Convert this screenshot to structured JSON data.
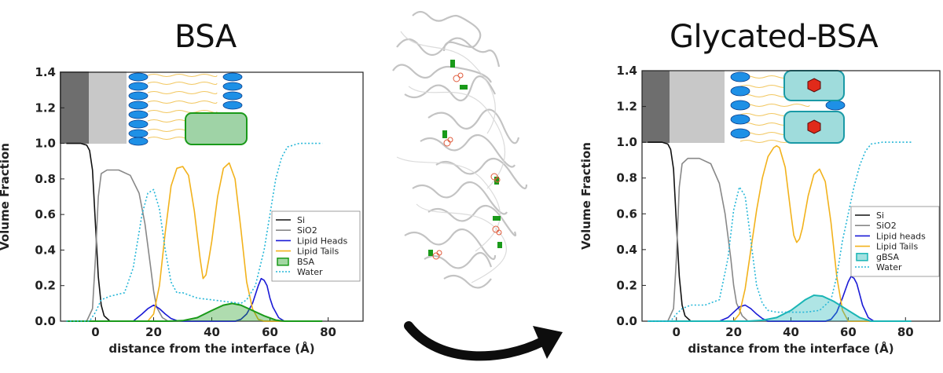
{
  "panels": {
    "left_title": "BSA",
    "right_title": "Glycated-BSA"
  },
  "chart_data": [
    {
      "type": "line",
      "title": "BSA",
      "xlabel": "distance from the interface (Å)",
      "ylabel": "Volume Fraction",
      "xlim": [
        -12,
        92
      ],
      "ylim": [
        0,
        1.4
      ],
      "xticks": [
        0,
        20,
        40,
        60,
        80
      ],
      "yticks": [
        0.0,
        0.2,
        0.4,
        0.6,
        0.8,
        1.0,
        1.2,
        1.4
      ],
      "x_tick_labels": [
        "0",
        "20",
        "40",
        "60",
        "80"
      ],
      "y_tick_labels": [
        "0.0",
        "0.2",
        "0.4",
        "0.6",
        "0.8",
        "1.0",
        "1.2",
        "1.4"
      ],
      "legend_position": "middle-right",
      "series": [
        {
          "name": "Si",
          "color": "#111111",
          "style": "solid",
          "x": [
            -10,
            -5,
            -3,
            -2,
            -1,
            0,
            1,
            2,
            3,
            5,
            8,
            78
          ],
          "y": [
            1.0,
            1.0,
            0.99,
            0.96,
            0.85,
            0.55,
            0.25,
            0.09,
            0.03,
            0.0,
            0.0,
            0.0
          ]
        },
        {
          "name": "SiO2",
          "color": "#888888",
          "style": "solid",
          "x": [
            -10,
            -3,
            -1,
            0,
            1,
            2,
            4,
            8,
            12,
            15,
            17,
            19,
            20,
            21,
            23,
            25,
            78
          ],
          "y": [
            0.0,
            0.0,
            0.07,
            0.35,
            0.7,
            0.83,
            0.85,
            0.85,
            0.82,
            0.72,
            0.55,
            0.3,
            0.17,
            0.08,
            0.02,
            0.0,
            0.0
          ]
        },
        {
          "name": "Lipid Heads",
          "color": "#1a1ad6",
          "style": "solid",
          "x": [
            -10,
            13,
            16,
            18,
            20,
            22,
            24,
            26,
            28,
            30,
            48,
            50,
            52,
            54,
            56,
            57,
            58,
            59,
            60,
            61,
            63,
            65,
            78
          ],
          "y": [
            0.0,
            0.0,
            0.04,
            0.07,
            0.09,
            0.07,
            0.04,
            0.015,
            0.003,
            0.0,
            0.0,
            0.01,
            0.04,
            0.1,
            0.2,
            0.24,
            0.23,
            0.2,
            0.13,
            0.08,
            0.02,
            0.0,
            0.0
          ]
        },
        {
          "name": "Lipid Tails",
          "color": "#f2b21c",
          "style": "solid",
          "x": [
            -10,
            18,
            20,
            22,
            24,
            26,
            28,
            30,
            32,
            34,
            36,
            37,
            38,
            39,
            40,
            42,
            44,
            46,
            48,
            50,
            52,
            54,
            56,
            58,
            78
          ],
          "y": [
            0.0,
            0.0,
            0.04,
            0.2,
            0.5,
            0.76,
            0.86,
            0.87,
            0.82,
            0.62,
            0.35,
            0.24,
            0.26,
            0.35,
            0.45,
            0.7,
            0.86,
            0.89,
            0.8,
            0.52,
            0.22,
            0.07,
            0.01,
            0.0,
            0.0
          ]
        },
        {
          "name": "BSA",
          "color": "#1a9a1a",
          "style": "area",
          "x": [
            -10,
            25,
            30,
            35,
            40,
            44,
            47,
            50,
            54,
            58,
            62,
            65,
            78
          ],
          "y": [
            0.0,
            0.0,
            0.003,
            0.02,
            0.06,
            0.09,
            0.1,
            0.09,
            0.06,
            0.03,
            0.006,
            0.0,
            0.0
          ]
        },
        {
          "name": "Water",
          "color": "#27b7d8",
          "style": "dotted",
          "x": [
            -10,
            -2,
            0,
            2,
            5,
            10,
            13,
            16,
            18,
            20,
            22,
            24,
            26,
            28,
            30,
            35,
            40,
            45,
            50,
            52,
            55,
            58,
            60,
            62,
            64,
            66,
            70,
            78
          ],
          "y": [
            0.0,
            0.0,
            0.05,
            0.12,
            0.14,
            0.16,
            0.3,
            0.6,
            0.72,
            0.74,
            0.63,
            0.4,
            0.22,
            0.16,
            0.16,
            0.13,
            0.12,
            0.11,
            0.1,
            0.12,
            0.2,
            0.4,
            0.6,
            0.8,
            0.92,
            0.98,
            1.0,
            1.0
          ]
        }
      ]
    },
    {
      "type": "line",
      "title": "Glycated-BSA",
      "xlabel": "distance from the interface (Å)",
      "ylabel": "Volume Fraction",
      "xlim": [
        -12,
        92
      ],
      "ylim": [
        0,
        1.4
      ],
      "xticks": [
        0,
        20,
        40,
        60,
        80
      ],
      "yticks": [
        0.0,
        0.2,
        0.4,
        0.6,
        0.8,
        1.0,
        1.2,
        1.4
      ],
      "x_tick_labels": [
        "0",
        "20",
        "40",
        "60",
        "80"
      ],
      "y_tick_labels": [
        "0.0",
        "0.2",
        "0.4",
        "0.6",
        "0.8",
        "1.0",
        "1.2",
        "1.4"
      ],
      "legend_position": "middle-right",
      "series": [
        {
          "name": "Si",
          "color": "#111111",
          "style": "solid",
          "x": [
            -10,
            -5,
            -3,
            -2,
            -1,
            0,
            1,
            2,
            3,
            5,
            8,
            82
          ],
          "y": [
            1.0,
            1.0,
            0.99,
            0.96,
            0.85,
            0.55,
            0.25,
            0.09,
            0.03,
            0.0,
            0.0,
            0.0
          ]
        },
        {
          "name": "SiO2",
          "color": "#888888",
          "style": "solid",
          "x": [
            -10,
            -3,
            -1,
            0,
            1,
            2,
            4,
            8,
            12,
            15,
            17,
            19,
            20,
            21,
            23,
            25,
            82
          ],
          "y": [
            0.0,
            0.0,
            0.07,
            0.35,
            0.75,
            0.88,
            0.91,
            0.91,
            0.88,
            0.77,
            0.6,
            0.35,
            0.2,
            0.1,
            0.03,
            0.0,
            0.0
          ]
        },
        {
          "name": "Lipid heads",
          "color": "#1a1ad6",
          "style": "solid",
          "x": [
            -10,
            15,
            18,
            20,
            22,
            24,
            26,
            28,
            30,
            32,
            52,
            54,
            56,
            58,
            60,
            61,
            62,
            63,
            64,
            65,
            67,
            69,
            82
          ],
          "y": [
            0.0,
            0.0,
            0.02,
            0.05,
            0.08,
            0.09,
            0.07,
            0.04,
            0.015,
            0.0,
            0.0,
            0.01,
            0.05,
            0.13,
            0.22,
            0.25,
            0.24,
            0.21,
            0.15,
            0.09,
            0.02,
            0.0,
            0.0
          ]
        },
        {
          "name": "Lipid Tails",
          "color": "#f2b21c",
          "style": "solid",
          "x": [
            -10,
            20,
            22,
            24,
            26,
            28,
            30,
            32,
            34,
            35,
            36,
            38,
            40,
            41,
            42,
            43,
            44,
            46,
            48,
            50,
            52,
            54,
            56,
            58,
            60,
            82
          ],
          "y": [
            0.0,
            0.0,
            0.04,
            0.18,
            0.4,
            0.62,
            0.8,
            0.92,
            0.97,
            0.98,
            0.97,
            0.86,
            0.6,
            0.48,
            0.44,
            0.46,
            0.52,
            0.7,
            0.82,
            0.85,
            0.78,
            0.55,
            0.25,
            0.06,
            0.0,
            0.0
          ]
        },
        {
          "name": "gBSA",
          "color": "#1ab5b5",
          "style": "area",
          "x": [
            -10,
            25,
            30,
            35,
            40,
            45,
            48,
            51,
            55,
            60,
            64,
            68,
            82
          ],
          "y": [
            0.0,
            0.0,
            0.005,
            0.02,
            0.06,
            0.12,
            0.145,
            0.14,
            0.11,
            0.06,
            0.02,
            0.0,
            0.0
          ]
        },
        {
          "name": "Water",
          "color": "#27b7d8",
          "style": "dotted",
          "x": [
            -10,
            -2,
            0,
            2,
            5,
            10,
            15,
            18,
            20,
            22,
            24,
            26,
            28,
            30,
            32,
            35,
            40,
            45,
            50,
            54,
            56,
            58,
            60,
            62,
            64,
            66,
            68,
            72,
            82
          ],
          "y": [
            0.0,
            0.0,
            0.04,
            0.07,
            0.09,
            0.09,
            0.12,
            0.35,
            0.62,
            0.75,
            0.7,
            0.45,
            0.2,
            0.1,
            0.06,
            0.05,
            0.05,
            0.05,
            0.06,
            0.12,
            0.25,
            0.45,
            0.6,
            0.75,
            0.87,
            0.95,
            0.99,
            1.0,
            1.0
          ]
        }
      ]
    }
  ]
}
